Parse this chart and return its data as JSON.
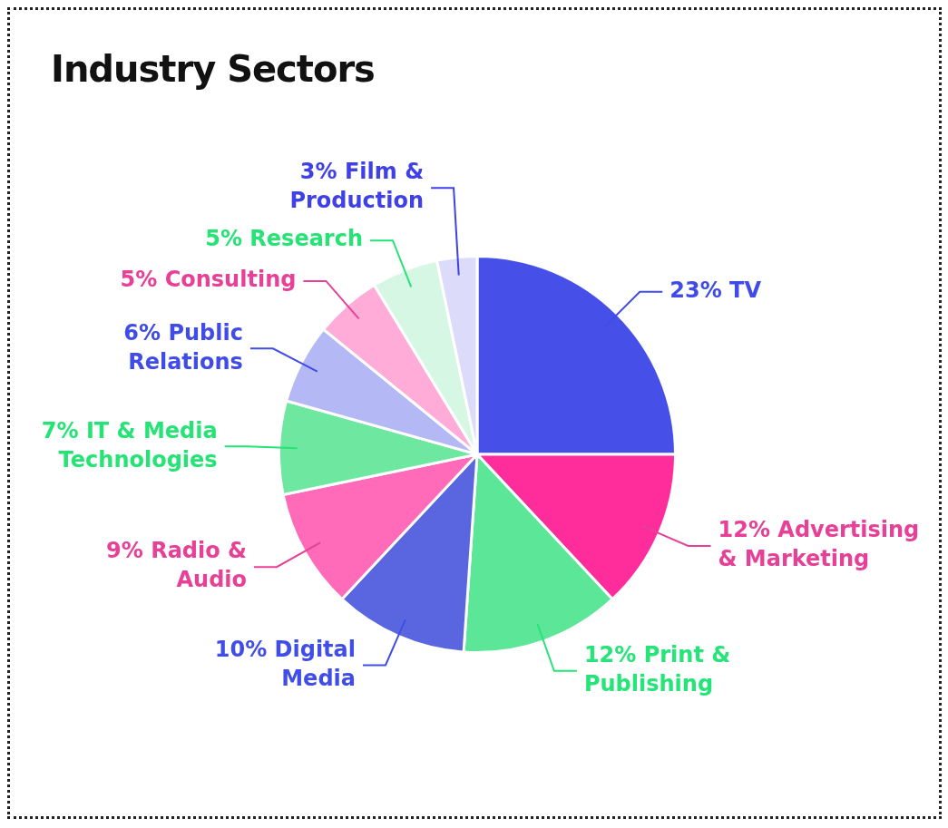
{
  "chart_data": {
    "type": "pie",
    "title": "Industry Sectors",
    "categories": [
      "TV",
      "Advertising & Marketing",
      "Print & Publishing",
      "Digital Media",
      "Radio & Audio",
      "IT & Media Technologies",
      "Public Relations",
      "Consulting",
      "Research",
      "Film & Production"
    ],
    "values": [
      23,
      12,
      12,
      10,
      9,
      7,
      6,
      5,
      5,
      3
    ],
    "value_labels": [
      "23%",
      "12%",
      "12%",
      "10%",
      "9%",
      "7%",
      "6%",
      "5%",
      "5%",
      "3%"
    ],
    "colors": [
      "#4650e8",
      "#ff2d9b",
      "#5ce697",
      "#5a66e0",
      "#ff6bb8",
      "#6ee8a0",
      "#b4b8f5",
      "#ffadd8",
      "#d6f7e4",
      "#dcdcfa"
    ],
    "legend": false
  }
}
